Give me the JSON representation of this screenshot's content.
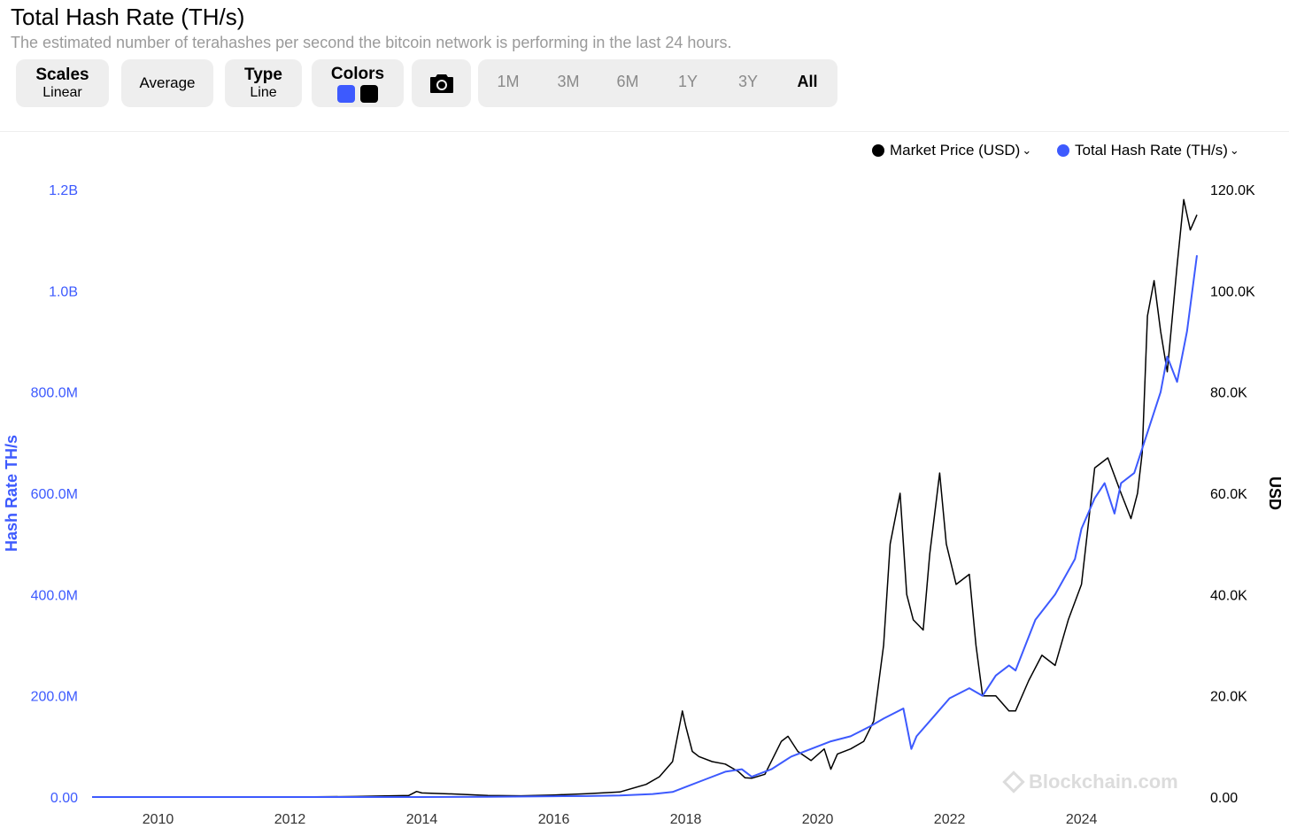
{
  "header": {
    "title": "Total Hash Rate (TH/s)",
    "subtitle": "The estimated number of terahashes per second the bitcoin network is performing in the last 24 hours."
  },
  "toolbar": {
    "scales_label": "Scales",
    "scales_value": "Linear",
    "average_label": "Average",
    "type_label": "Type",
    "type_value": "Line",
    "colors_label": "Colors",
    "color_hash": "#3d5afe",
    "color_price": "#000000",
    "camera_icon": "camera-icon",
    "ranges": [
      "1M",
      "3M",
      "6M",
      "1Y",
      "3Y",
      "All"
    ],
    "active_range": "All"
  },
  "legend": {
    "price_label": "Market Price (USD)",
    "hash_label": "Total Hash Rate (TH/s)"
  },
  "watermark": "Blockchain.com",
  "chart_data": {
    "type": "line",
    "title": "Total Hash Rate (TH/s)",
    "xlabel": "",
    "ylabel_left": "Hash Rate TH/s",
    "ylabel_right": "USD",
    "x_ticks": [
      "2010",
      "2012",
      "2014",
      "2016",
      "2018",
      "2020",
      "2022",
      "2024"
    ],
    "y_left_ticks": [
      "0.00",
      "200.0M",
      "400.0M",
      "600.0M",
      "800.0M",
      "1.0B",
      "1.2B"
    ],
    "y_right_ticks": [
      "0.00",
      "20.0K",
      "40.0K",
      "60.0K",
      "80.0K",
      "100.0K",
      "120.0K"
    ],
    "xlim": [
      2009.0,
      2025.75
    ],
    "ylim_left": [
      0,
      1200000000
    ],
    "ylim_right": [
      0,
      120000
    ],
    "grid": false,
    "legend_position": "top-right",
    "series": [
      {
        "name": "Market Price (USD)",
        "axis": "right",
        "color": "#000000",
        "x": [
          2009.0,
          2010.5,
          2012.0,
          2013.0,
          2013.8,
          2013.92,
          2014.0,
          2014.5,
          2015.0,
          2015.5,
          2016.0,
          2016.5,
          2017.0,
          2017.4,
          2017.6,
          2017.8,
          2017.95,
          2018.0,
          2018.1,
          2018.2,
          2018.4,
          2018.6,
          2018.8,
          2018.9,
          2019.0,
          2019.2,
          2019.45,
          2019.55,
          2019.7,
          2019.9,
          2020.1,
          2020.2,
          2020.3,
          2020.5,
          2020.7,
          2020.85,
          2021.0,
          2021.1,
          2021.25,
          2021.35,
          2021.45,
          2021.6,
          2021.7,
          2021.85,
          2021.95,
          2022.1,
          2022.3,
          2022.4,
          2022.5,
          2022.7,
          2022.9,
          2023.0,
          2023.2,
          2023.4,
          2023.6,
          2023.8,
          2024.0,
          2024.2,
          2024.4,
          2024.6,
          2024.75,
          2024.85,
          2024.92,
          2025.0,
          2025.1,
          2025.2,
          2025.3,
          2025.45,
          2025.55,
          2025.65,
          2025.75
        ],
        "y": [
          0,
          0,
          5,
          100,
          300,
          1100,
          800,
          600,
          300,
          250,
          400,
          650,
          1000,
          2500,
          4000,
          7000,
          17000,
          14000,
          9000,
          8000,
          7000,
          6500,
          5000,
          3800,
          3700,
          4500,
          11000,
          12000,
          9000,
          7200,
          9500,
          5500,
          8500,
          9500,
          11000,
          15000,
          30000,
          50000,
          60000,
          40000,
          35000,
          33000,
          48000,
          64000,
          50000,
          42000,
          44000,
          30000,
          20000,
          20000,
          17000,
          17000,
          23000,
          28000,
          26000,
          35000,
          42000,
          65000,
          67000,
          60000,
          55000,
          60000,
          68000,
          95000,
          102000,
          92000,
          84000,
          105000,
          118000,
          112000,
          115000
        ]
      },
      {
        "name": "Total Hash Rate (TH/s)",
        "axis": "left",
        "color": "#3d5afe",
        "x": [
          2009.0,
          2012.0,
          2013.0,
          2014.0,
          2015.0,
          2016.0,
          2016.5,
          2017.0,
          2017.5,
          2017.8,
          2018.0,
          2018.3,
          2018.6,
          2018.85,
          2019.0,
          2019.3,
          2019.6,
          2019.9,
          2020.2,
          2020.5,
          2020.8,
          2021.0,
          2021.3,
          2021.42,
          2021.5,
          2021.8,
          2022.0,
          2022.3,
          2022.5,
          2022.7,
          2022.9,
          2023.0,
          2023.3,
          2023.6,
          2023.9,
          2024.0,
          2024.2,
          2024.35,
          2024.5,
          2024.6,
          2024.8,
          2025.0,
          2025.2,
          2025.3,
          2025.45,
          2025.6,
          2025.75
        ],
        "y": [
          0,
          1000,
          10000,
          80000,
          400000,
          1500000,
          2000000,
          3000000,
          6000000,
          10000000,
          20000000,
          35000000,
          50000000,
          55000000,
          40000000,
          55000000,
          80000000,
          95000000,
          110000000,
          120000000,
          140000000,
          155000000,
          175000000,
          95000000,
          120000000,
          165000000,
          195000000,
          215000000,
          200000000,
          240000000,
          260000000,
          250000000,
          350000000,
          400000000,
          470000000,
          530000000,
          590000000,
          620000000,
          560000000,
          620000000,
          640000000,
          720000000,
          800000000,
          870000000,
          820000000,
          920000000,
          1070000000
        ]
      }
    ]
  }
}
